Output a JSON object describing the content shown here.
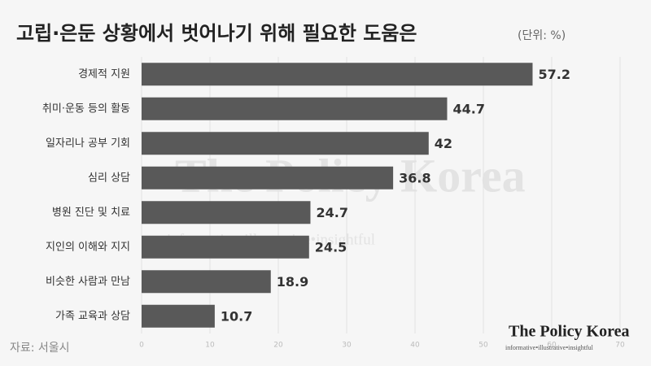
{
  "chart_data": {
    "type": "hbar",
    "title": "고립·은둔 상황에서 벗어나기 위해 필요한 도움은",
    "subtitle": "(단위: %)",
    "categories": [
      "경제적 지원",
      "취미·운동 등의 활동",
      "일자리나 공부 기회",
      "심리 상담",
      "병원 진단 및 치료",
      "지인의 이해와 지지",
      "비슷한 사람과 만남",
      "가족 교육과 상담"
    ],
    "values": [
      57.2,
      44.7,
      42,
      36.8,
      24.7,
      24.5,
      18.9,
      10.7
    ],
    "color": "#595959",
    "xlim": [
      0,
      70
    ],
    "xticks": [
      0,
      10,
      20,
      30,
      40,
      50,
      60,
      70
    ],
    "grid": true,
    "source": "자료: 서울시"
  },
  "watermark": {
    "title": "The Policy Korea",
    "tagline": "informative•illustrative•insightful"
  },
  "logo": {
    "title": "The Policy Korea",
    "tagline": "informative•illustrative•insightful"
  }
}
